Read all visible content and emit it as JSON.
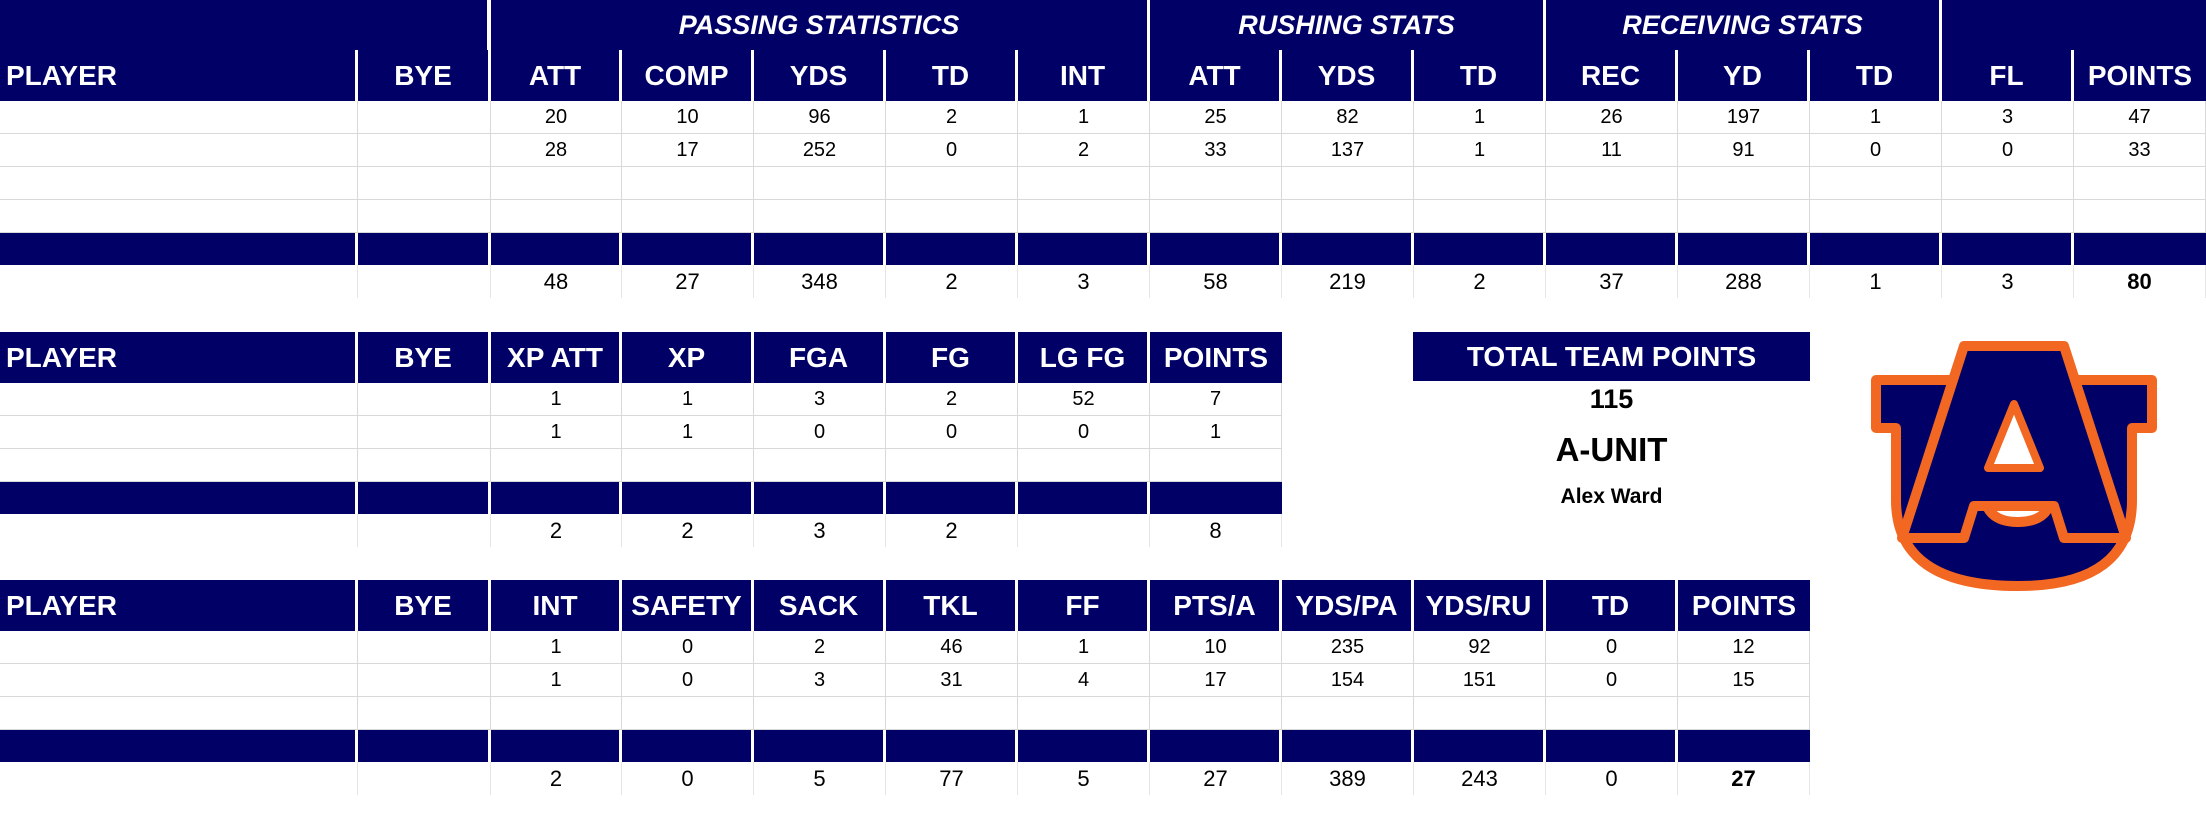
{
  "colors": {
    "header_bg": "#000066",
    "header_text": "#ffffff",
    "logo_orange": "#f26722",
    "logo_navy": "#000066"
  },
  "offense": {
    "group_headers": [
      "PASSING STATISTICS",
      "RUSHING STATS",
      "RECEIVING STATS"
    ],
    "columns": [
      "PLAYER",
      "BYE",
      "ATT",
      "COMP",
      "YDS",
      "TD",
      "INT",
      "ATT",
      "YDS",
      "TD",
      "REC",
      "YD",
      "TD",
      "FL",
      "POINTS"
    ],
    "rows": [
      [
        "",
        "",
        "20",
        "10",
        "96",
        "2",
        "1",
        "25",
        "82",
        "1",
        "26",
        "197",
        "1",
        "3",
        "47"
      ],
      [
        "",
        "",
        "28",
        "17",
        "252",
        "0",
        "2",
        "33",
        "137",
        "1",
        "11",
        "91",
        "0",
        "0",
        "33"
      ],
      [
        "",
        "",
        "",
        "",
        "",
        "",
        "",
        "",
        "",
        "",
        "",
        "",
        "",
        "",
        ""
      ],
      [
        "",
        "",
        "",
        "",
        "",
        "",
        "",
        "",
        "",
        "",
        "",
        "",
        "",
        "",
        ""
      ]
    ],
    "totals": [
      "",
      "",
      "48",
      "27",
      "348",
      "2",
      "3",
      "58",
      "219",
      "2",
      "37",
      "288",
      "1",
      "3",
      "80"
    ]
  },
  "kicking": {
    "columns": [
      "PLAYER",
      "BYE",
      "XP ATT",
      "XP",
      "FGA",
      "FG",
      "LG FG",
      "POINTS"
    ],
    "rows": [
      [
        "",
        "",
        "1",
        "1",
        "3",
        "2",
        "52",
        "7"
      ],
      [
        "",
        "",
        "1",
        "1",
        "0",
        "0",
        "0",
        "1"
      ],
      [
        "",
        "",
        "",
        "",
        "",
        "",
        "",
        ""
      ]
    ],
    "totals": [
      "",
      "",
      "2",
      "2",
      "3",
      "2",
      "",
      "8"
    ]
  },
  "defense": {
    "columns": [
      "PLAYER",
      "BYE",
      "INT",
      "SAFETY",
      "SACK",
      "TKL",
      "FF",
      "PTS/A",
      "YDS/PA",
      "YDS/RU",
      "TD",
      "POINTS"
    ],
    "rows": [
      [
        "",
        "",
        "1",
        "0",
        "2",
        "46",
        "1",
        "10",
        "235",
        "92",
        "0",
        "12"
      ],
      [
        "",
        "",
        "1",
        "0",
        "3",
        "31",
        "4",
        "17",
        "154",
        "151",
        "0",
        "15"
      ],
      [
        "",
        "",
        "",
        "",
        "",
        "",
        "",
        "",
        "",
        "",
        "",
        ""
      ]
    ],
    "totals": [
      "",
      "",
      "2",
      "0",
      "5",
      "77",
      "5",
      "27",
      "389",
      "243",
      "0",
      "27"
    ]
  },
  "team": {
    "total_label": "TOTAL TEAM POINTS",
    "total_points": "115",
    "team_name": "A-UNIT",
    "owner": "Alex Ward"
  },
  "logo": {
    "icon": "au-logo-icon"
  }
}
